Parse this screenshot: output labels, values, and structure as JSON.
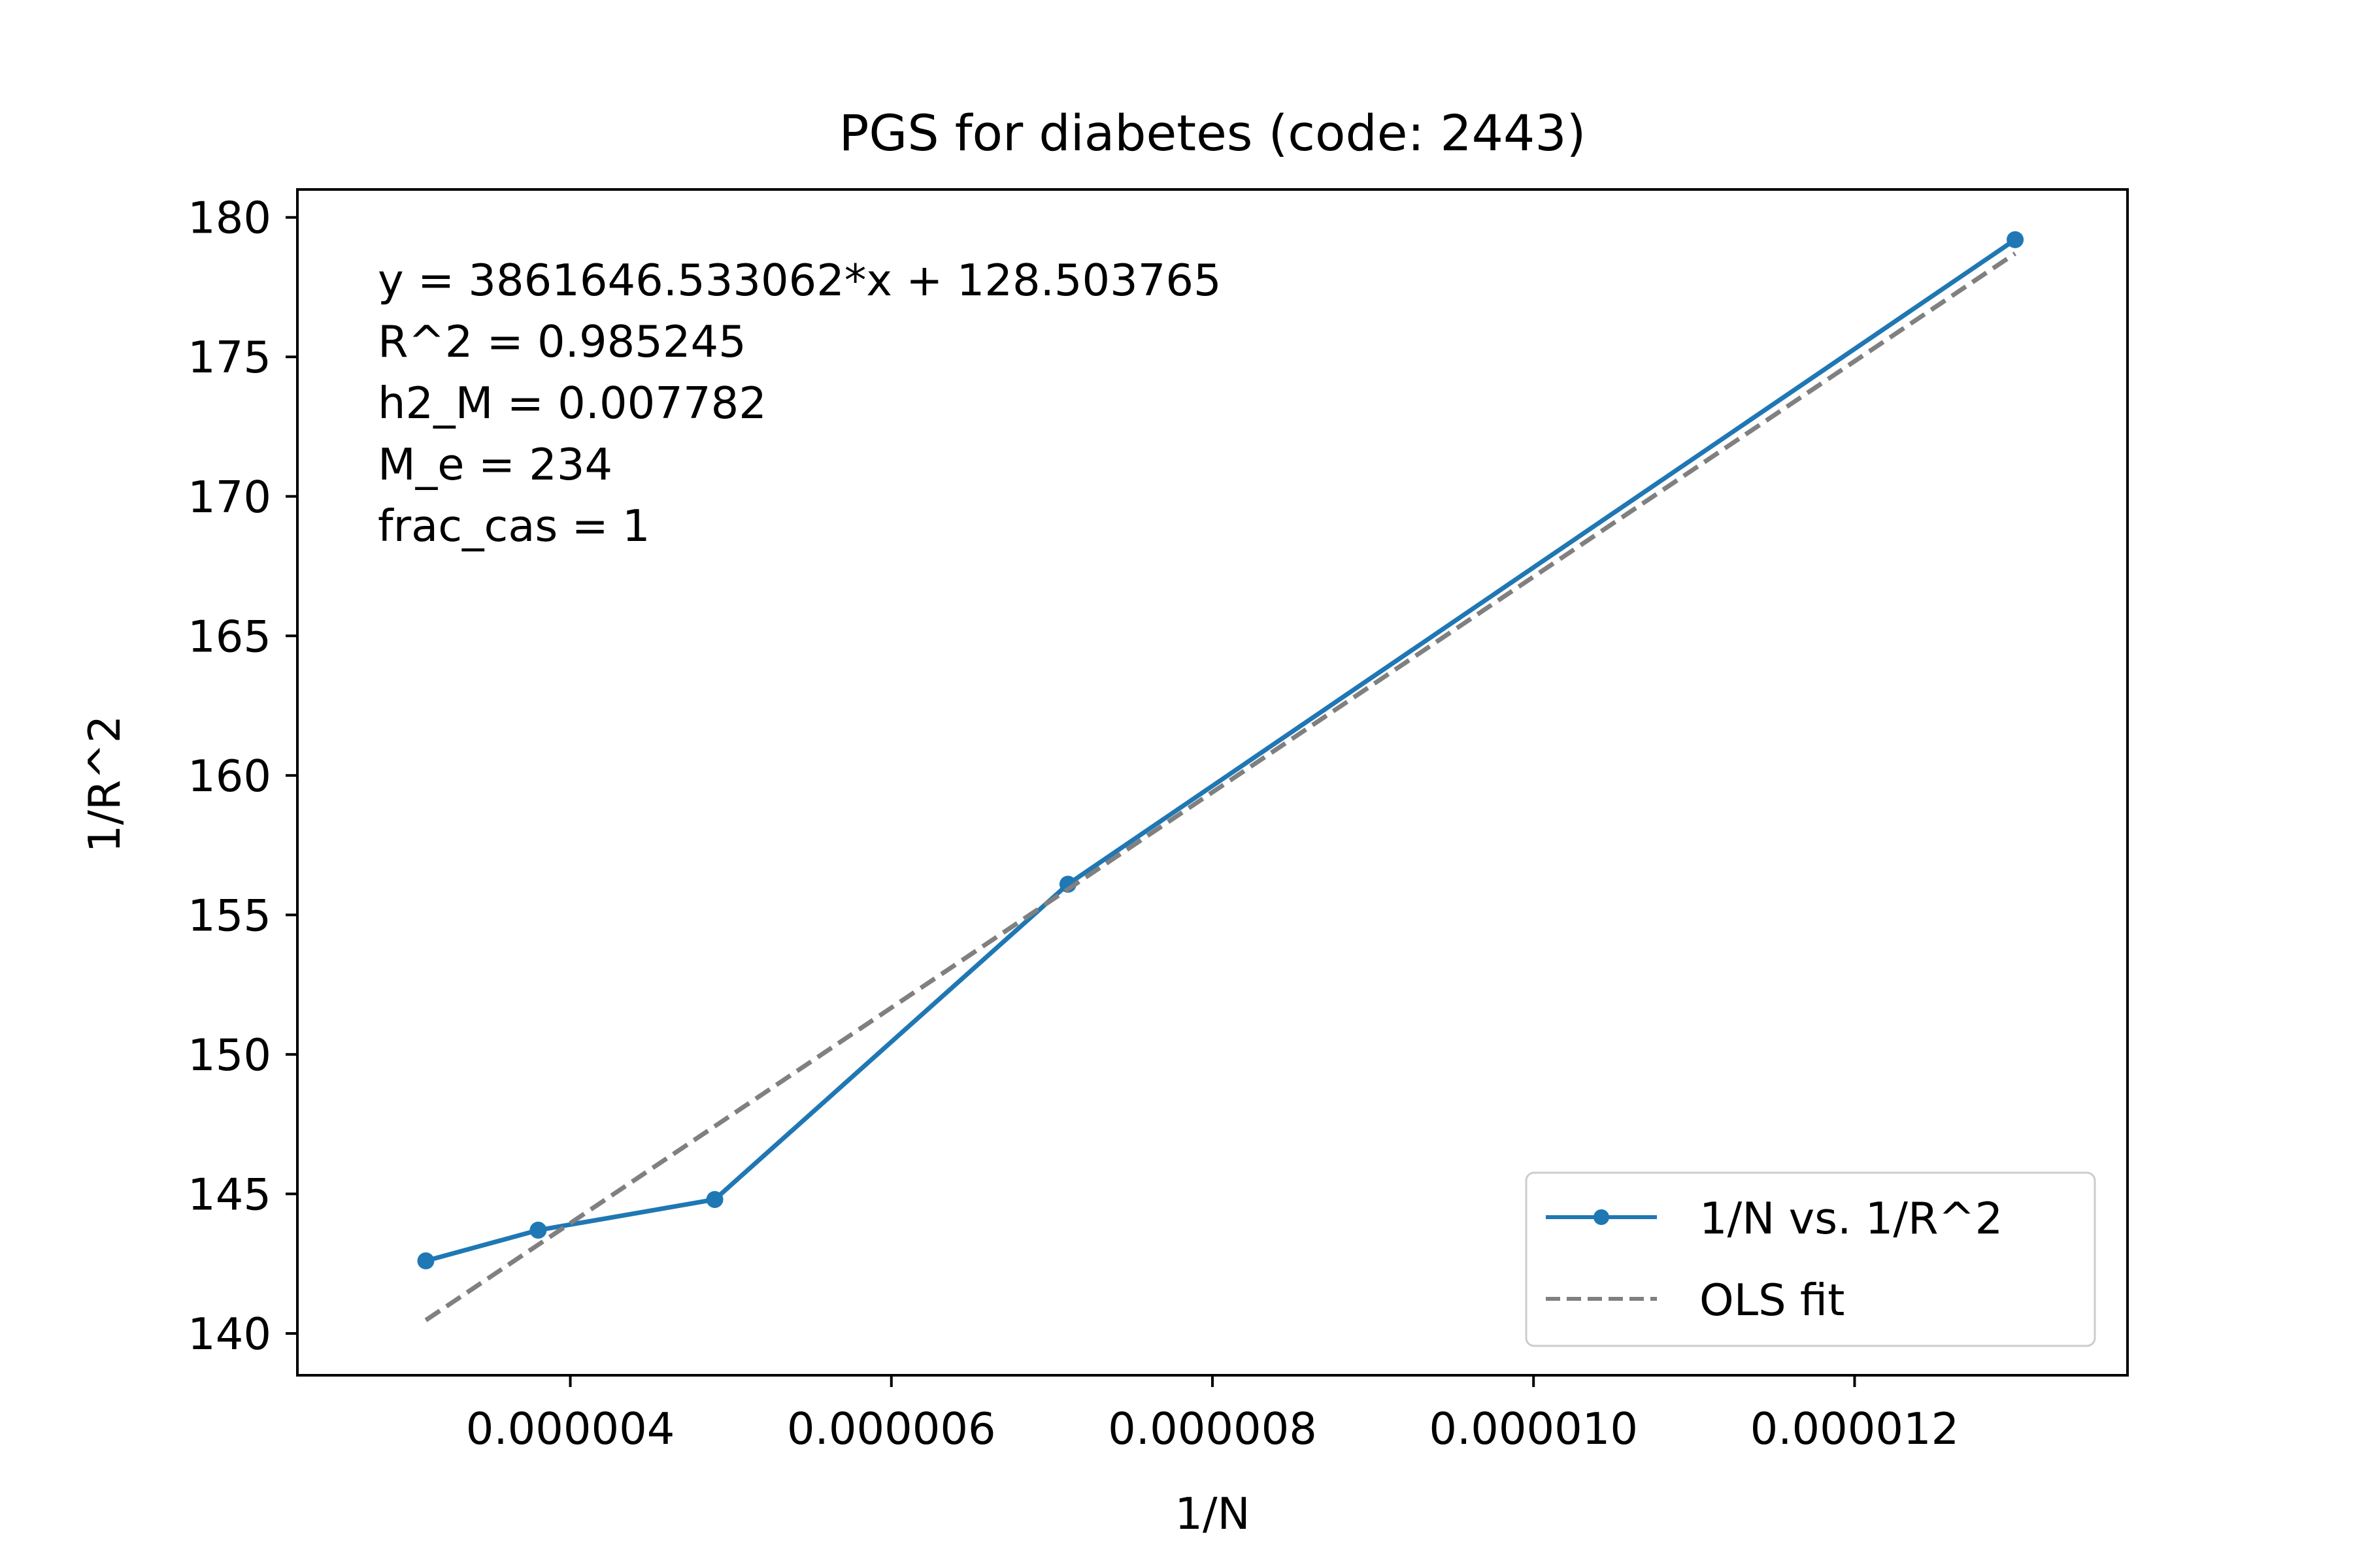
{
  "chart_data": {
    "type": "line",
    "title": "PGS for diabetes (code: 2443)",
    "xlabel": "1/N",
    "ylabel": "1/R^2",
    "xlim": [
      2.3e-06,
      1.37e-05
    ],
    "ylim": [
      138.5,
      181.0
    ],
    "x_ticks": [
      4e-06,
      6e-06,
      8e-06,
      1e-05,
      1.2e-05
    ],
    "x_tick_labels": [
      "0.000004",
      "0.000006",
      "0.000008",
      "0.000010",
      "0.000012"
    ],
    "y_ticks": [
      140,
      145,
      150,
      155,
      160,
      165,
      170,
      175,
      180
    ],
    "y_tick_labels": [
      "140",
      "145",
      "150",
      "155",
      "160",
      "165",
      "170",
      "175",
      "180"
    ],
    "grid": false,
    "legend_position": "lower-right",
    "series": [
      {
        "name": "1/N vs. 1/R^2",
        "style": "solid line with dot markers",
        "color": "#1f77b4",
        "x": [
          3.1e-06,
          3.8e-06,
          4.9e-06,
          7.1e-06,
          1.3e-05
        ],
        "y": [
          142.6,
          143.7,
          144.8,
          156.1,
          179.2
        ]
      },
      {
        "name": "OLS fit",
        "style": "dashed line",
        "color": "#808080",
        "slope": 3861646.533062,
        "intercept": 128.503765,
        "x": [
          3.1e-06,
          1.3e-05
        ],
        "y": [
          140.475,
          178.705
        ]
      }
    ],
    "annotations": [
      "y = 3861646.533062*x + 128.503765",
      "R^2 = 0.985245",
      "h2_M = 0.007782",
      "M_e = 234",
      "frac_cas = 1"
    ]
  }
}
